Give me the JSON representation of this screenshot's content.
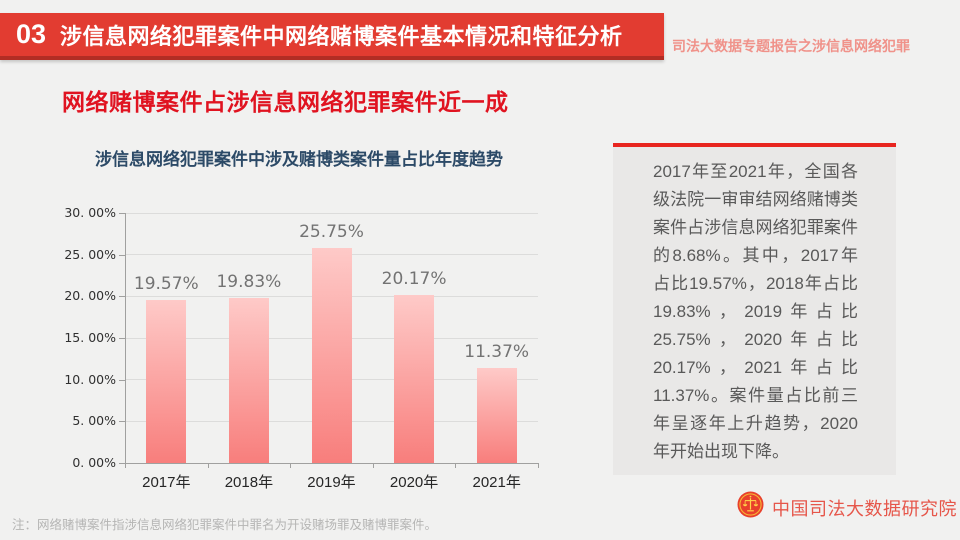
{
  "banner": {
    "number": "03",
    "title": "涉信息网络犯罪案件中网络赌博案件基本情况和特征分析",
    "tagline": "司法大数据专题报告之涉信息网络犯罪"
  },
  "headline": "网络赌博案件占涉信息网络犯罪案件近一成",
  "chart_data": {
    "type": "bar",
    "title": "涉信息网络犯罪案件中涉及赌博类案件量占比年度趋势",
    "categories": [
      "2017年",
      "2018年",
      "2019年",
      "2020年",
      "2021年"
    ],
    "values": [
      19.57,
      19.83,
      25.75,
      20.17,
      11.37
    ],
    "value_labels": [
      "19.57%",
      "19.83%",
      "25.75%",
      "20.17%",
      "11.37%"
    ],
    "xlabel": "",
    "ylabel": "",
    "ylim": [
      0,
      30
    ],
    "ytick_values": [
      0,
      5,
      10,
      15,
      20,
      25,
      30
    ],
    "ytick_labels": [
      "0. 00%",
      "5. 00%",
      "10. 00%",
      "15. 00%",
      "20. 00%",
      "25. 00%",
      "30. 00%"
    ],
    "grid": true,
    "legend": "none"
  },
  "panel": {
    "text": "2017年至2021年，全国各级法院一审审结网络赌博类案件占涉信息网络犯罪案件的8.68%。其中，2017年占比19.57%，2018年占比19.83%，2019年占比25.75%，2020年占比20.17%，2021年占比11.37%。案件量占比前三年呈逐年上升趋势，2020年开始出现下降。"
  },
  "footer": {
    "org": "中国司法大数据研究院",
    "note": "注：网络赌博案件指涉信息网络犯罪案件中罪名为开设赌场罪及赌博罪案件。"
  },
  "colors": {
    "banner_red": "#e23c31",
    "banner_edge": "#b22d24",
    "headline_red": "#e01320",
    "tagline_pink": "#f0928a",
    "chart_title_navy": "#2c4a67",
    "bar_top": "#fecac8",
    "bar_bottom": "#f87e7c",
    "value_label_gray": "#737373",
    "grid_gray": "#dcdcdb",
    "axis_gray": "#a0a09f",
    "panel_line_red": "#e8251f",
    "panel_bg": "#e9e8e7",
    "panel_text_gray": "#595959",
    "org_red": "#e6564a"
  }
}
